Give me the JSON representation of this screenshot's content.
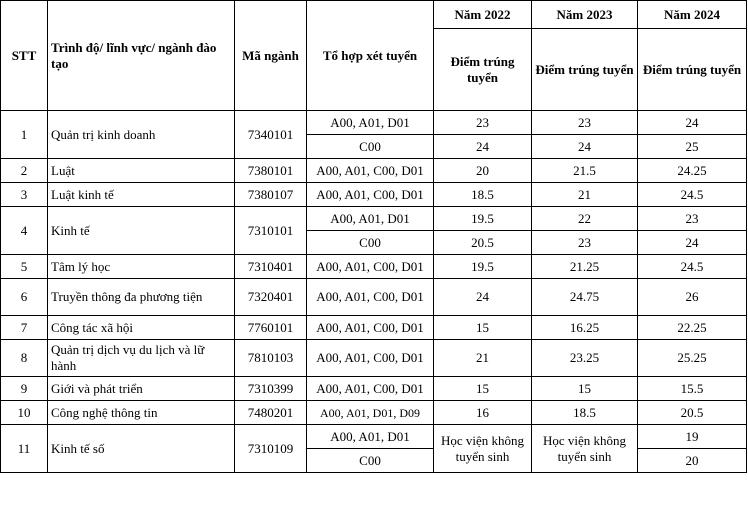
{
  "header": {
    "stt": "STT",
    "program": "Trình độ/ lĩnh vực/ ngành đào tạo",
    "code": "Mã ngành",
    "combo": "Tổ hợp xét tuyển",
    "years": [
      "Năm 2022",
      "Năm 2023",
      "Năm 2024"
    ],
    "score_label": "Điểm trúng tuyển"
  },
  "rows": [
    {
      "stt": "1",
      "name": "Quản trị kinh doanh",
      "code": "7340101",
      "sub": [
        {
          "combo": "A00, A01, D01",
          "y2022": "23",
          "y2023": "23",
          "y2024": "24"
        },
        {
          "combo": "C00",
          "y2022": "24",
          "y2023": "24",
          "y2024": "25"
        }
      ]
    },
    {
      "stt": "2",
      "name": "Luật",
      "code": "7380101",
      "sub": [
        {
          "combo": "A00, A01, C00, D01",
          "y2022": "20",
          "y2023": "21.5",
          "y2024": "24.25"
        }
      ]
    },
    {
      "stt": "3",
      "name": "Luật kinh tế",
      "code": "7380107",
      "sub": [
        {
          "combo": "A00, A01, C00, D01",
          "y2022": "18.5",
          "y2023": "21",
          "y2024": "24.5"
        }
      ]
    },
    {
      "stt": "4",
      "name": "Kinh tế",
      "code": "7310101",
      "sub": [
        {
          "combo": "A00, A01, D01",
          "y2022": "19.5",
          "y2023": "22",
          "y2024": "23"
        },
        {
          "combo": "C00",
          "y2022": "20.5",
          "y2023": "23",
          "y2024": "24"
        }
      ]
    },
    {
      "stt": "5",
      "name": "Tâm lý học",
      "code": "7310401",
      "sub": [
        {
          "combo": "A00, A01, C00, D01",
          "y2022": "19.5",
          "y2023": "21.25",
          "y2024": "24.5"
        }
      ]
    },
    {
      "stt": "6",
      "name": "Truyền thông đa phương tiện",
      "code": "7320401",
      "sub": [
        {
          "combo": "A00, A01, C00, D01",
          "y2022": "24",
          "y2023": "24.75",
          "y2024": "26"
        }
      ]
    },
    {
      "stt": "7",
      "name": "Công tác xã hội",
      "code": "7760101",
      "sub": [
        {
          "combo": "A00, A01, C00, D01",
          "y2022": "15",
          "y2023": "16.25",
          "y2024": "22.25"
        }
      ]
    },
    {
      "stt": "8",
      "name": "Quản trị dịch vụ du lịch và lữ hành",
      "code": "7810103",
      "sub": [
        {
          "combo": "A00, A01, C00, D01",
          "y2022": "21",
          "y2023": "23.25",
          "y2024": "25.25"
        }
      ]
    },
    {
      "stt": "9",
      "name": "Giới và phát triển",
      "code": "7310399",
      "sub": [
        {
          "combo": "A00, A01, C00, D01",
          "y2022": "15",
          "y2023": "15",
          "y2024": "15.5"
        }
      ]
    },
    {
      "stt": "10",
      "name": "Công nghệ thông tin",
      "code": "7480201",
      "sub": [
        {
          "combo": "A00, A01, D01, D09",
          "y2022": "16",
          "y2023": "18.5",
          "y2024": "20.5"
        }
      ]
    },
    {
      "stt": "11",
      "name": "Kinh tế số",
      "code": "7310109",
      "no_admission": "Học viện không tuyển sinh",
      "sub": [
        {
          "combo": "A00, A01, D01",
          "y2024": "19"
        },
        {
          "combo": "C00",
          "y2024": "20"
        }
      ]
    }
  ]
}
